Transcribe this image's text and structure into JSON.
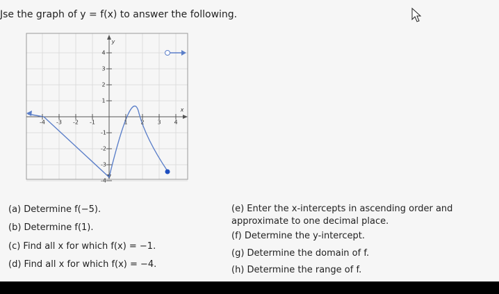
{
  "header": {
    "title": "Jse the graph of y = f(x) to answer the following."
  },
  "graph": {
    "y_axis_label": "y",
    "x_axis_label": "x",
    "x_ticks": [
      "-4",
      "-3",
      "-2",
      "-1",
      "1",
      "2",
      "3",
      "4"
    ],
    "y_ticks": [
      "4",
      "3",
      "2",
      "1",
      "-1",
      "-2",
      "-3",
      "-4"
    ]
  },
  "questions_left": [
    "(a) Determine f(−5).",
    "(b) Determine f(1).",
    "(c) Find all x for which f(x) = −1.",
    "(d) Find all x for which f(x) = −4."
  ],
  "questions_right": [
    "(e) Enter the x-intercepts in ascending order and",
    "approximate to one decimal place.",
    "(f) Determine the y-intercept.",
    "(g) Determine the domain of f.",
    "(h) Determine the range of f."
  ]
}
